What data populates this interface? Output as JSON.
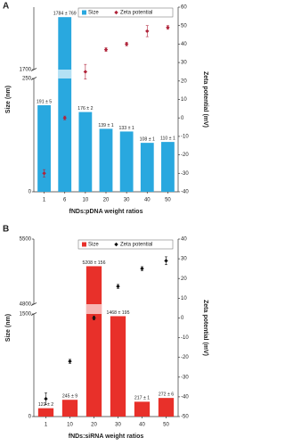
{
  "chart_data": [
    {
      "type": "bar",
      "label": "A",
      "x_label": "fNDs:pDNA weight ratios",
      "y_label": "Size (nm)",
      "y2_label": "Zeta potential (mV)",
      "categories": [
        "1",
        "6",
        "10",
        "20",
        "30",
        "40",
        "50"
      ],
      "ylim": [
        0,
        1800
      ],
      "ybreak": [
        250,
        1700
      ],
      "yticks": [
        0,
        250,
        1700
      ],
      "y2lim": [
        -40,
        60
      ],
      "y2ticks": [
        -40,
        -30,
        -20,
        -10,
        0,
        10,
        20,
        30,
        40,
        50,
        60
      ],
      "legend": "top",
      "series": [
        {
          "name": "Size",
          "type": "bar",
          "color": "#29a8df",
          "values": [
            191,
            1784,
            176,
            139,
            133,
            108,
            110
          ],
          "value_labels": [
            "191 ± 5",
            "1784 ± 769",
            "176 ± 2",
            "139 ± 1",
            "133 ± 1",
            "108 ± 1",
            "110 ± 1"
          ]
        },
        {
          "name": "Zeta potential",
          "type": "scatter",
          "axis": "y2",
          "color": "#b0243a",
          "values": [
            -30,
            0,
            25,
            37,
            40,
            47,
            49
          ],
          "errors": [
            2,
            1,
            4,
            1,
            1,
            3,
            1
          ]
        }
      ]
    },
    {
      "type": "bar",
      "label": "B",
      "x_label": "fNDs:siRNA weight ratios",
      "y_label": "Size (nm)",
      "y2_label": "Zeta potential (mV)",
      "categories": [
        "1",
        "10",
        "20",
        "30",
        "40",
        "50"
      ],
      "ylim": [
        0,
        5500
      ],
      "ybreak": [
        1500,
        4800
      ],
      "yticks": [
        0,
        1500,
        4800,
        5500
      ],
      "y2lim": [
        -50,
        40
      ],
      "y2ticks": [
        -50,
        -40,
        -30,
        -20,
        -10,
        0,
        10,
        20,
        30,
        40
      ],
      "legend": "top",
      "series": [
        {
          "name": "Size",
          "type": "bar",
          "color": "#e8302a",
          "values": [
            122,
            245,
            5208,
            1468,
            217,
            272
          ],
          "value_labels": [
            "122 ± 2",
            "245 ± 9",
            "5208 ± 156",
            "1468 ± 195",
            "217 ± 1",
            "272 ± 6"
          ]
        },
        {
          "name": "Zeta potential",
          "type": "scatter",
          "axis": "y2",
          "color": "#111111",
          "values": [
            -41,
            -22,
            0,
            16,
            25,
            29
          ],
          "errors": [
            3,
            1,
            1,
            1,
            1,
            2
          ]
        }
      ]
    }
  ]
}
